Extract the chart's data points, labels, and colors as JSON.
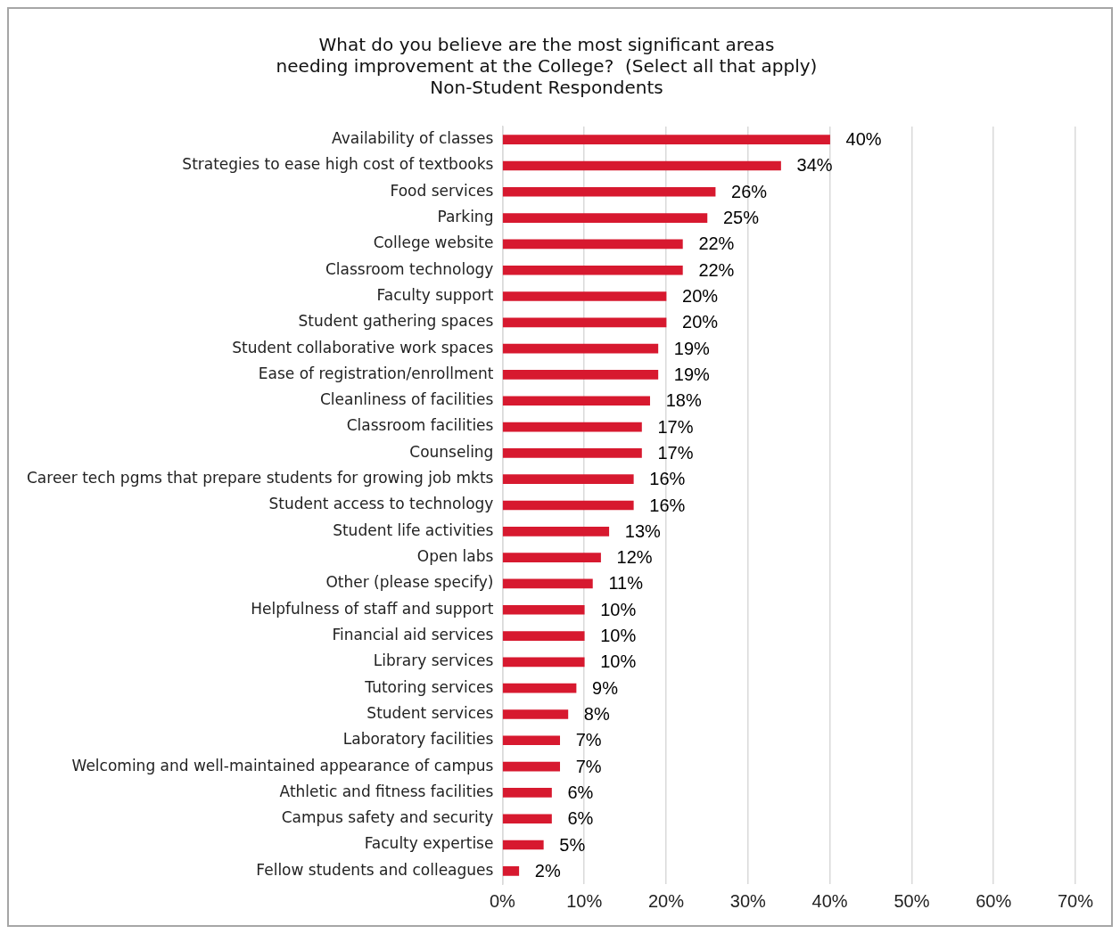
{
  "chart_data": {
    "type": "bar",
    "orientation": "horizontal",
    "title": [
      "What do you believe are the most significant areas",
      "needing improvement at the College?  (Select all that apply)",
      "Non-Student Respondents"
    ],
    "categories": [
      "Availability of classes",
      "Strategies to ease high cost of textbooks",
      "Food services",
      "Parking",
      "College website",
      "Classroom technology",
      "Faculty support",
      "Student gathering spaces",
      "Student collaborative work spaces",
      "Ease of registration/enrollment",
      "Cleanliness of facilities",
      "Classroom facilities",
      "Counseling",
      "Career tech pgms that prepare students for growing job mkts",
      "Student access to technology",
      "Student life activities",
      "Open labs",
      "Other (please specify)",
      "Helpfulness of staff and support",
      "Financial aid services",
      "Library services",
      "Tutoring services",
      "Student services",
      "Laboratory facilities",
      "Welcoming and well-maintained appearance of campus",
      "Athletic and fitness facilities",
      "Campus safety and security",
      "Faculty expertise",
      "Fellow students and colleagues"
    ],
    "values": [
      40,
      34,
      26,
      25,
      22,
      22,
      20,
      20,
      19,
      19,
      18,
      17,
      17,
      16,
      16,
      13,
      12,
      11,
      10,
      10,
      10,
      9,
      8,
      7,
      7,
      6,
      6,
      5,
      2
    ],
    "value_labels": [
      "40%",
      "34%",
      "26%",
      "25%",
      "22%",
      "22%",
      "20%",
      "20%",
      "19%",
      "19%",
      "18%",
      "17%",
      "17%",
      "16%",
      "16%",
      "13%",
      "12%",
      "11%",
      "10%",
      "10%",
      "10%",
      "9%",
      "8%",
      "7%",
      "7%",
      "6%",
      "6%",
      "5%",
      "2%"
    ],
    "color": "#d7192f",
    "xlim": [
      0,
      70
    ],
    "xticks": [
      {
        "value": 0,
        "label": "0%"
      },
      {
        "value": 10,
        "label": "10%"
      },
      {
        "value": 20,
        "label": "20%"
      },
      {
        "value": 30,
        "label": "30%"
      },
      {
        "value": 40,
        "label": "40%"
      },
      {
        "value": 50,
        "label": "50%"
      },
      {
        "value": 60,
        "label": "60%"
      },
      {
        "value": 70,
        "label": "70%"
      }
    ],
    "grid": "x",
    "legend": false
  }
}
